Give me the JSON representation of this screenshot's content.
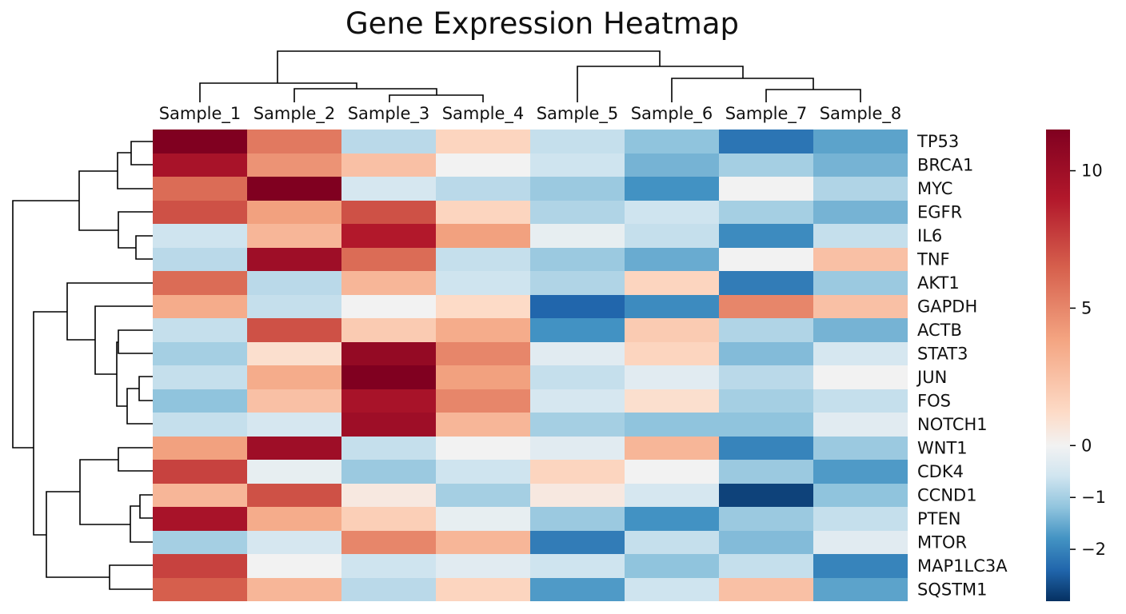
{
  "chart_data": {
    "type": "heatmap",
    "title": "Gene Expression Heatmap",
    "columns": [
      "Sample_1",
      "Sample_2",
      "Sample_3",
      "Sample_4",
      "Sample_5",
      "Sample_6",
      "Sample_7",
      "Sample_8"
    ],
    "rows": [
      "TP53",
      "BRCA1",
      "MYC",
      "EGFR",
      "IL6",
      "TNF",
      "AKT1",
      "GAPDH",
      "ACTB",
      "STAT3",
      "JUN",
      "FOS",
      "NOTCH1",
      "WNT1",
      "CDK4",
      "CCND1",
      "PTEN",
      "MTOR",
      "MAP1LC3A",
      "SQSTM1"
    ],
    "values": [
      [
        11.5,
        5.5,
        -0.8,
        1.5,
        -0.7,
        -1.2,
        -2.2,
        -1.6
      ],
      [
        9.5,
        4.5,
        2.5,
        0.0,
        -0.6,
        -1.4,
        -1.0,
        -1.4
      ],
      [
        6.0,
        11.5,
        -0.5,
        -0.8,
        -1.1,
        -1.8,
        0.0,
        -0.9
      ],
      [
        7.0,
        4.0,
        7.0,
        1.5,
        -0.9,
        -0.6,
        -1.0,
        -1.4
      ],
      [
        -0.6,
        3.0,
        9.0,
        4.0,
        -0.2,
        -0.7,
        -1.9,
        -0.7
      ],
      [
        -0.8,
        10.0,
        6.0,
        -0.7,
        -1.1,
        -1.5,
        0.0,
        2.5
      ],
      [
        6.0,
        -0.8,
        3.0,
        -0.6,
        -0.9,
        1.5,
        -2.1,
        -1.1
      ],
      [
        3.5,
        -0.7,
        0.0,
        1.2,
        -2.4,
        -1.9,
        5.0,
        2.5
      ],
      [
        -0.7,
        7.0,
        2.0,
        3.5,
        -1.8,
        2.0,
        -0.9,
        -1.4
      ],
      [
        -1.0,
        1.0,
        10.5,
        5.0,
        -0.3,
        1.5,
        -1.3,
        -0.5
      ],
      [
        -0.7,
        3.5,
        11.5,
        4.0,
        -0.7,
        -0.3,
        -0.8,
        0.0
      ],
      [
        -1.2,
        2.5,
        9.5,
        5.0,
        -0.5,
        1.0,
        -1.0,
        -0.7
      ],
      [
        -0.7,
        -0.5,
        10.0,
        3.0,
        -1.0,
        -1.2,
        -1.2,
        -0.3
      ],
      [
        4.0,
        10.0,
        -0.7,
        0.0,
        -0.3,
        3.0,
        -2.0,
        -1.1
      ],
      [
        7.5,
        -0.2,
        -1.1,
        -0.6,
        1.5,
        0.0,
        -1.1,
        -1.7
      ],
      [
        3.0,
        7.0,
        0.5,
        -1.0,
        0.5,
        -0.5,
        -2.8,
        -1.2
      ],
      [
        9.5,
        3.5,
        1.8,
        -0.2,
        -1.1,
        -1.8,
        -1.1,
        -0.7
      ],
      [
        -1.0,
        -0.5,
        5.0,
        3.0,
        -2.1,
        -0.7,
        -1.3,
        -0.3
      ],
      [
        7.5,
        0.0,
        -0.6,
        -0.3,
        -0.6,
        -1.2,
        -0.7,
        -2.0
      ],
      [
        6.5,
        3.0,
        -0.8,
        1.5,
        -1.7,
        -0.6,
        2.5,
        -1.6
      ]
    ],
    "colorbar": {
      "colormap": "RdBu_r",
      "ticks": [
        10,
        5,
        0,
        -1,
        -2
      ],
      "tick_labels": [
        "10",
        "5",
        "0",
        "−1",
        "−2"
      ],
      "range": [
        -3,
        11.5
      ]
    },
    "column_dendrogram": {
      "merges": [
        {
          "cols": [
            "Sample_3",
            "Sample_4"
          ]
        },
        {
          "cols": [
            "Sample_2",
            "(Sample_3, Sample_4)"
          ]
        },
        {
          "cols": [
            "Sample_1",
            "(Sample_2, Sample_3, Sample_4)"
          ]
        },
        {
          "cols": [
            "Sample_7",
            "Sample_8"
          ]
        },
        {
          "cols": [
            "Sample_6",
            "(Sample_7, Sample_8)"
          ]
        },
        {
          "cols": [
            "Sample_5",
            "(Sample_6, Sample_7, Sample_8)"
          ]
        },
        {
          "cols": [
            "(Sample_1..4)",
            "(Sample_5..8)"
          ]
        }
      ]
    }
  }
}
